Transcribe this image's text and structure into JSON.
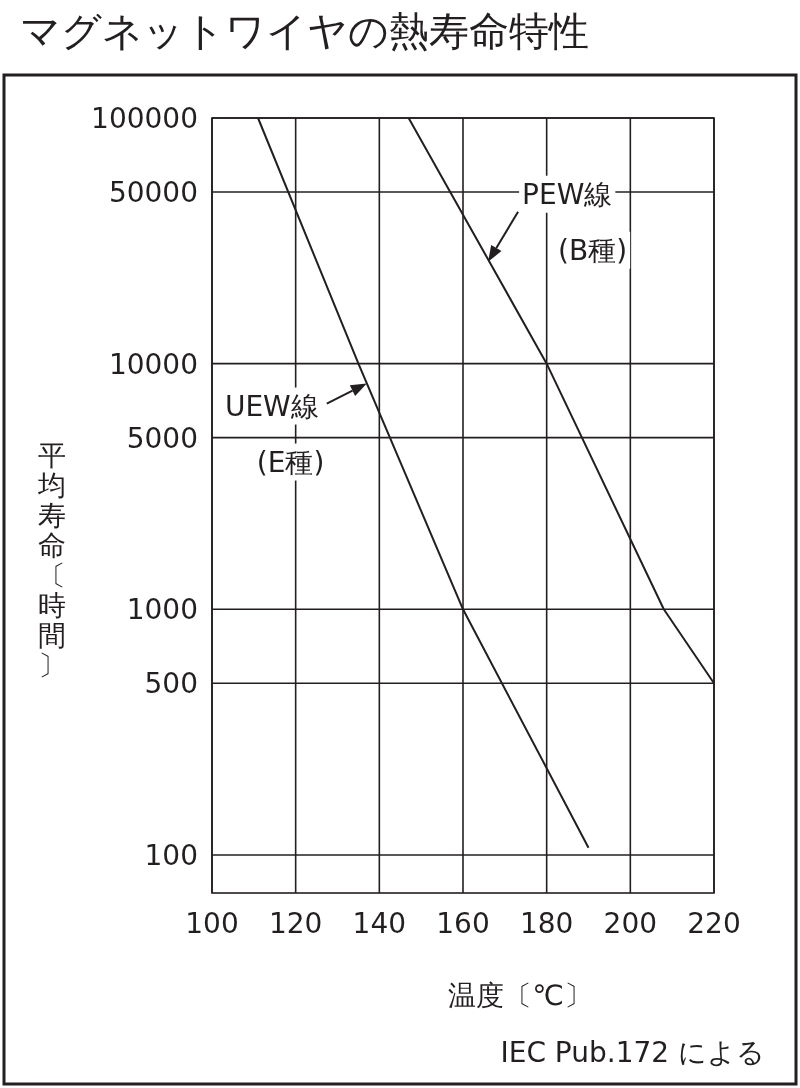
{
  "chart_data": {
    "type": "line",
    "title": "マグネットワイヤの熱寿命特性",
    "xlabel": "温度〔℃〕",
    "ylabel": "平均寿命〔時間〕",
    "series": [
      {
        "color": "#231f20",
        "x": [
          111,
          135,
          160,
          190
        ],
        "values": [
          100000,
          10000,
          1000,
          107
        ]
      },
      {
        "color": "#231f20",
        "x": [
          147,
          180,
          208,
          220
        ],
        "values": [
          100000,
          10000,
          1000,
          500
        ]
      }
    ],
    "xlim": [
      100,
      220
    ],
    "xticks": [
      100,
      120,
      140,
      160,
      180,
      200,
      220
    ],
    "ylim": [
      70,
      100000
    ],
    "yticks": [
      100,
      500,
      1000,
      5000,
      10000,
      50000,
      100000
    ],
    "log": "y",
    "grid": true,
    "line_style": "solid",
    "annotations": [
      {
        "text": "PEW線",
        "x": 166,
        "y": 26000
      },
      "(B種)",
      {
        "text": "UEW線",
        "x": 137,
        "y": 8300
      },
      "(E種)",
      "IEC Pub.172 による"
    ]
  }
}
